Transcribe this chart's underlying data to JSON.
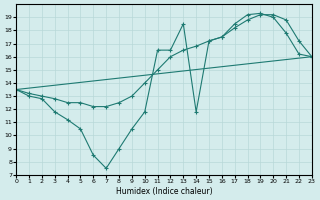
{
  "xlabel": "Humidex (Indice chaleur)",
  "background_color": "#d4ecec",
  "grid_color": "#b8d8d8",
  "line_color": "#1e7a72",
  "ylim": [
    7,
    20
  ],
  "xlim": [
    0,
    23
  ],
  "yticks": [
    7,
    8,
    9,
    10,
    11,
    12,
    13,
    14,
    15,
    16,
    17,
    18,
    19
  ],
  "xticks": [
    0,
    1,
    2,
    3,
    4,
    5,
    6,
    7,
    8,
    9,
    10,
    11,
    12,
    13,
    14,
    15,
    16,
    17,
    18,
    19,
    20,
    21,
    22,
    23
  ],
  "line1_x": [
    0,
    1,
    2,
    3,
    4,
    5,
    6,
    7,
    8,
    9,
    10,
    11,
    12,
    13,
    14,
    15,
    16,
    17,
    18,
    19,
    20,
    21,
    22,
    23
  ],
  "line1_y": [
    13.5,
    13.0,
    12.8,
    11.8,
    11.2,
    10.5,
    8.5,
    7.5,
    9.0,
    10.5,
    11.8,
    16.5,
    16.5,
    18.5,
    11.8,
    17.2,
    17.5,
    18.5,
    19.2,
    19.3,
    19.0,
    17.8,
    16.2,
    16.0
  ],
  "line2_x": [
    0,
    1,
    2,
    3,
    4,
    5,
    6,
    7,
    8,
    9,
    10,
    11,
    12,
    13,
    14,
    15,
    16,
    17,
    18,
    19,
    20,
    21,
    22,
    23
  ],
  "line2_y": [
    13.5,
    13.2,
    13.0,
    12.8,
    12.5,
    12.5,
    12.2,
    12.2,
    12.5,
    13.0,
    14.0,
    15.0,
    16.0,
    16.5,
    16.8,
    17.2,
    17.5,
    18.2,
    18.8,
    19.2,
    19.2,
    18.8,
    17.2,
    16.0
  ],
  "line3_x": [
    0,
    23
  ],
  "line3_y": [
    13.5,
    16.0
  ]
}
